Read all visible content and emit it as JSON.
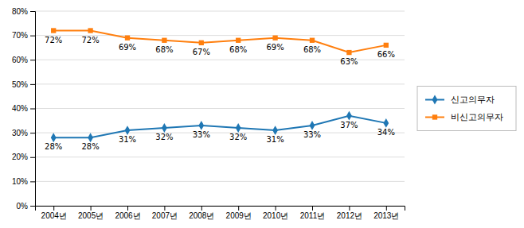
{
  "chart_data": {
    "type": "line",
    "categories": [
      "2004년",
      "2005년",
      "2006년",
      "2007년",
      "2008년",
      "2009년",
      "2010년",
      "2011년",
      "2012년",
      "2013년"
    ],
    "series": [
      {
        "name": "신고의무자",
        "marker": "diamond",
        "values": [
          28,
          28,
          31,
          32,
          33,
          32,
          31,
          33,
          37,
          34
        ],
        "value_labels": [
          "28%",
          "28%",
          "31%",
          "32%",
          "33%",
          "32%",
          "31%",
          "33%",
          "37%",
          "34%"
        ]
      },
      {
        "name": "비신고의무자",
        "marker": "square",
        "values": [
          72,
          72,
          69,
          68,
          67,
          68,
          69,
          68,
          63,
          66
        ],
        "value_labels": [
          "72%",
          "72%",
          "69%",
          "68%",
          "67%",
          "68%",
          "69%",
          "68%",
          "63%",
          "66%"
        ]
      }
    ],
    "ylim": [
      0,
      80
    ],
    "yticks": [
      {
        "value": 0,
        "label": "0%"
      },
      {
        "value": 10,
        "label": "10%"
      },
      {
        "value": 20,
        "label": "20%"
      },
      {
        "value": 30,
        "label": "30%"
      },
      {
        "value": 40,
        "label": "40%"
      },
      {
        "value": 50,
        "label": "50%"
      },
      {
        "value": 60,
        "label": "60%"
      },
      {
        "value": 70,
        "label": "70%"
      },
      {
        "value": 80,
        "label": "80%"
      }
    ],
    "grid": true,
    "legend": "right",
    "data_labels": true
  }
}
